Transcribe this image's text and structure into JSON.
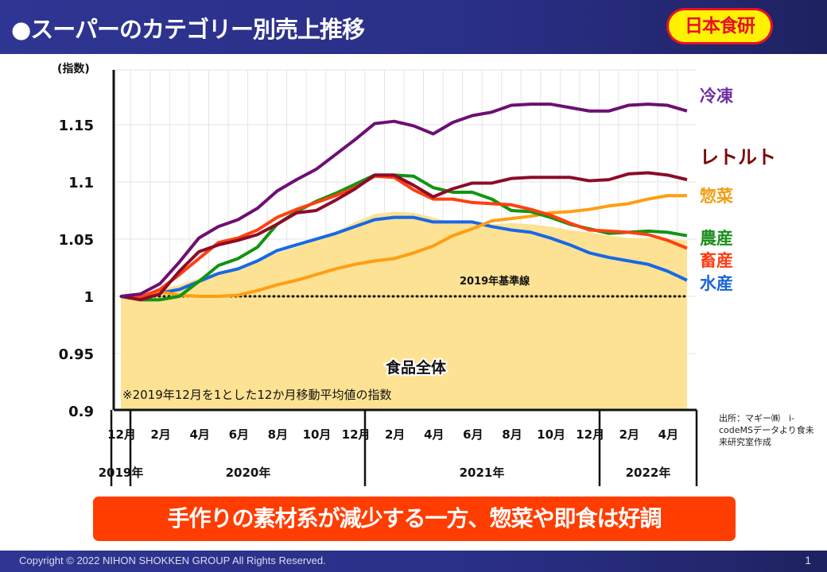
{
  "header": {
    "title": "●スーパーのカテゴリー別売上推移",
    "logo_text": "日本食研"
  },
  "banner": {
    "text": "手作りの素材系が減少する一方、惣菜や即食は好調"
  },
  "footer": {
    "copyright": "Copyright © 2022 NIHON SHOKKEN GROUP All Rights Reserved.",
    "page_number": "1"
  },
  "source_note": "出所：マギー㈱　i-codeMSデータより食未来研究室作成",
  "chart_data": {
    "type": "line",
    "title": "スーパーのカテゴリー別売上推移",
    "ylabel": "(指数)",
    "xlabel": "",
    "ylim": [
      0.9,
      1.19
    ],
    "yticks": [
      0.9,
      0.95,
      1,
      1.05,
      1.1,
      1.15
    ],
    "ytick_labels": [
      "0.9",
      "0.95",
      "1",
      "1.05",
      "1.1",
      "1.15"
    ],
    "grid": true,
    "x": [
      "2019-12",
      "2020-01",
      "2020-02",
      "2020-03",
      "2020-04",
      "2020-05",
      "2020-06",
      "2020-07",
      "2020-08",
      "2020-09",
      "2020-10",
      "2020-11",
      "2020-12",
      "2021-01",
      "2021-02",
      "2021-03",
      "2021-04",
      "2021-05",
      "2021-06",
      "2021-07",
      "2021-08",
      "2021-09",
      "2021-10",
      "2021-11",
      "2021-12",
      "2022-01",
      "2022-02",
      "2022-03",
      "2022-04",
      "2022-05"
    ],
    "month_tick_labels": [
      {
        "index": 0,
        "label": "12月"
      },
      {
        "index": 2,
        "label": "2月"
      },
      {
        "index": 4,
        "label": "4月"
      },
      {
        "index": 6,
        "label": "6月"
      },
      {
        "index": 8,
        "label": "8月"
      },
      {
        "index": 10,
        "label": "10月"
      },
      {
        "index": 12,
        "label": "12月"
      },
      {
        "index": 14,
        "label": "2月"
      },
      {
        "index": 16,
        "label": "4月"
      },
      {
        "index": 18,
        "label": "6月"
      },
      {
        "index": 20,
        "label": "8月"
      },
      {
        "index": 22,
        "label": "10月"
      },
      {
        "index": 24,
        "label": "12月"
      },
      {
        "index": 26,
        "label": "2月"
      },
      {
        "index": 28,
        "label": "4月"
      }
    ],
    "year_groups": [
      {
        "label": "2019年",
        "start": 0,
        "end": 0
      },
      {
        "label": "2020年",
        "start": 1,
        "end": 12
      },
      {
        "label": "2021年",
        "start": 13,
        "end": 24
      },
      {
        "label": "2022年",
        "start": 25,
        "end": 29
      }
    ],
    "area": {
      "name": "食品全体",
      "color": "#fde293",
      "values": [
        1.0,
        1.002,
        1.006,
        1.01,
        1.016,
        1.021,
        1.025,
        1.031,
        1.038,
        1.043,
        1.049,
        1.056,
        1.065,
        1.072,
        1.074,
        1.073,
        1.069,
        1.064,
        1.065,
        1.063,
        1.064,
        1.063,
        1.061,
        1.058,
        1.056,
        1.053,
        1.051,
        1.051,
        1.05,
        1.049
      ]
    },
    "series": [
      {
        "name": "冷凍",
        "color": "#6d0f72",
        "label_color": "#7030a0",
        "values": [
          1.0,
          1.002,
          1.011,
          1.03,
          1.051,
          1.061,
          1.067,
          1.077,
          1.092,
          1.102,
          1.111,
          1.124,
          1.137,
          1.151,
          1.153,
          1.149,
          1.142,
          1.152,
          1.158,
          1.161,
          1.167,
          1.168,
          1.168,
          1.165,
          1.162,
          1.162,
          1.167,
          1.168,
          1.167,
          1.162
        ]
      },
      {
        "name": "レトルト",
        "color": "#8c0c2a",
        "label_color": "#7b0a0a",
        "values": [
          1.0,
          0.997,
          1.002,
          1.022,
          1.039,
          1.045,
          1.049,
          1.054,
          1.063,
          1.073,
          1.075,
          1.084,
          1.094,
          1.106,
          1.106,
          1.097,
          1.087,
          1.094,
          1.099,
          1.099,
          1.103,
          1.104,
          1.104,
          1.104,
          1.101,
          1.102,
          1.107,
          1.108,
          1.106,
          1.102
        ]
      },
      {
        "name": "惣菜",
        "color": "#ff9e12",
        "label_color": "#f39c12",
        "values": [
          1.0,
          1.001,
          1.004,
          1.001,
          1.0,
          1.0,
          1.001,
          1.005,
          1.01,
          1.014,
          1.019,
          1.024,
          1.028,
          1.031,
          1.033,
          1.038,
          1.044,
          1.053,
          1.059,
          1.066,
          1.068,
          1.07,
          1.073,
          1.074,
          1.076,
          1.079,
          1.081,
          1.085,
          1.088,
          1.088
        ]
      },
      {
        "name": "農産",
        "color": "#129412",
        "label_color": "#1b8f1b",
        "values": [
          1.0,
          0.997,
          0.997,
          1.0,
          1.013,
          1.027,
          1.033,
          1.043,
          1.063,
          1.074,
          1.083,
          1.09,
          1.098,
          1.106,
          1.106,
          1.105,
          1.095,
          1.091,
          1.091,
          1.085,
          1.075,
          1.074,
          1.069,
          1.063,
          1.059,
          1.055,
          1.056,
          1.057,
          1.056,
          1.053
        ]
      },
      {
        "name": "畜産",
        "color": "#ff4010",
        "label_color": "#ff3b10",
        "values": [
          1.0,
          0.999,
          1.006,
          1.019,
          1.033,
          1.047,
          1.051,
          1.058,
          1.069,
          1.076,
          1.082,
          1.088,
          1.095,
          1.105,
          1.104,
          1.093,
          1.085,
          1.085,
          1.082,
          1.081,
          1.08,
          1.076,
          1.071,
          1.064,
          1.058,
          1.057,
          1.056,
          1.054,
          1.049,
          1.042
        ]
      },
      {
        "name": "水産",
        "color": "#1768e6",
        "label_color": "#1a66d8",
        "values": [
          1.0,
          1.0,
          1.003,
          1.006,
          1.013,
          1.02,
          1.024,
          1.031,
          1.04,
          1.045,
          1.05,
          1.055,
          1.061,
          1.067,
          1.069,
          1.069,
          1.065,
          1.065,
          1.065,
          1.061,
          1.058,
          1.056,
          1.051,
          1.045,
          1.038,
          1.034,
          1.031,
          1.028,
          1.022,
          1.014
        ]
      }
    ],
    "baseline": {
      "value": 1,
      "label": "2019年基準線"
    },
    "annotations": {
      "area_label": "食品全体",
      "footnote": "※2019年12月を1とした12か月移動平均値の指数"
    },
    "legend_placement": "right (direct labels at line ends)"
  }
}
